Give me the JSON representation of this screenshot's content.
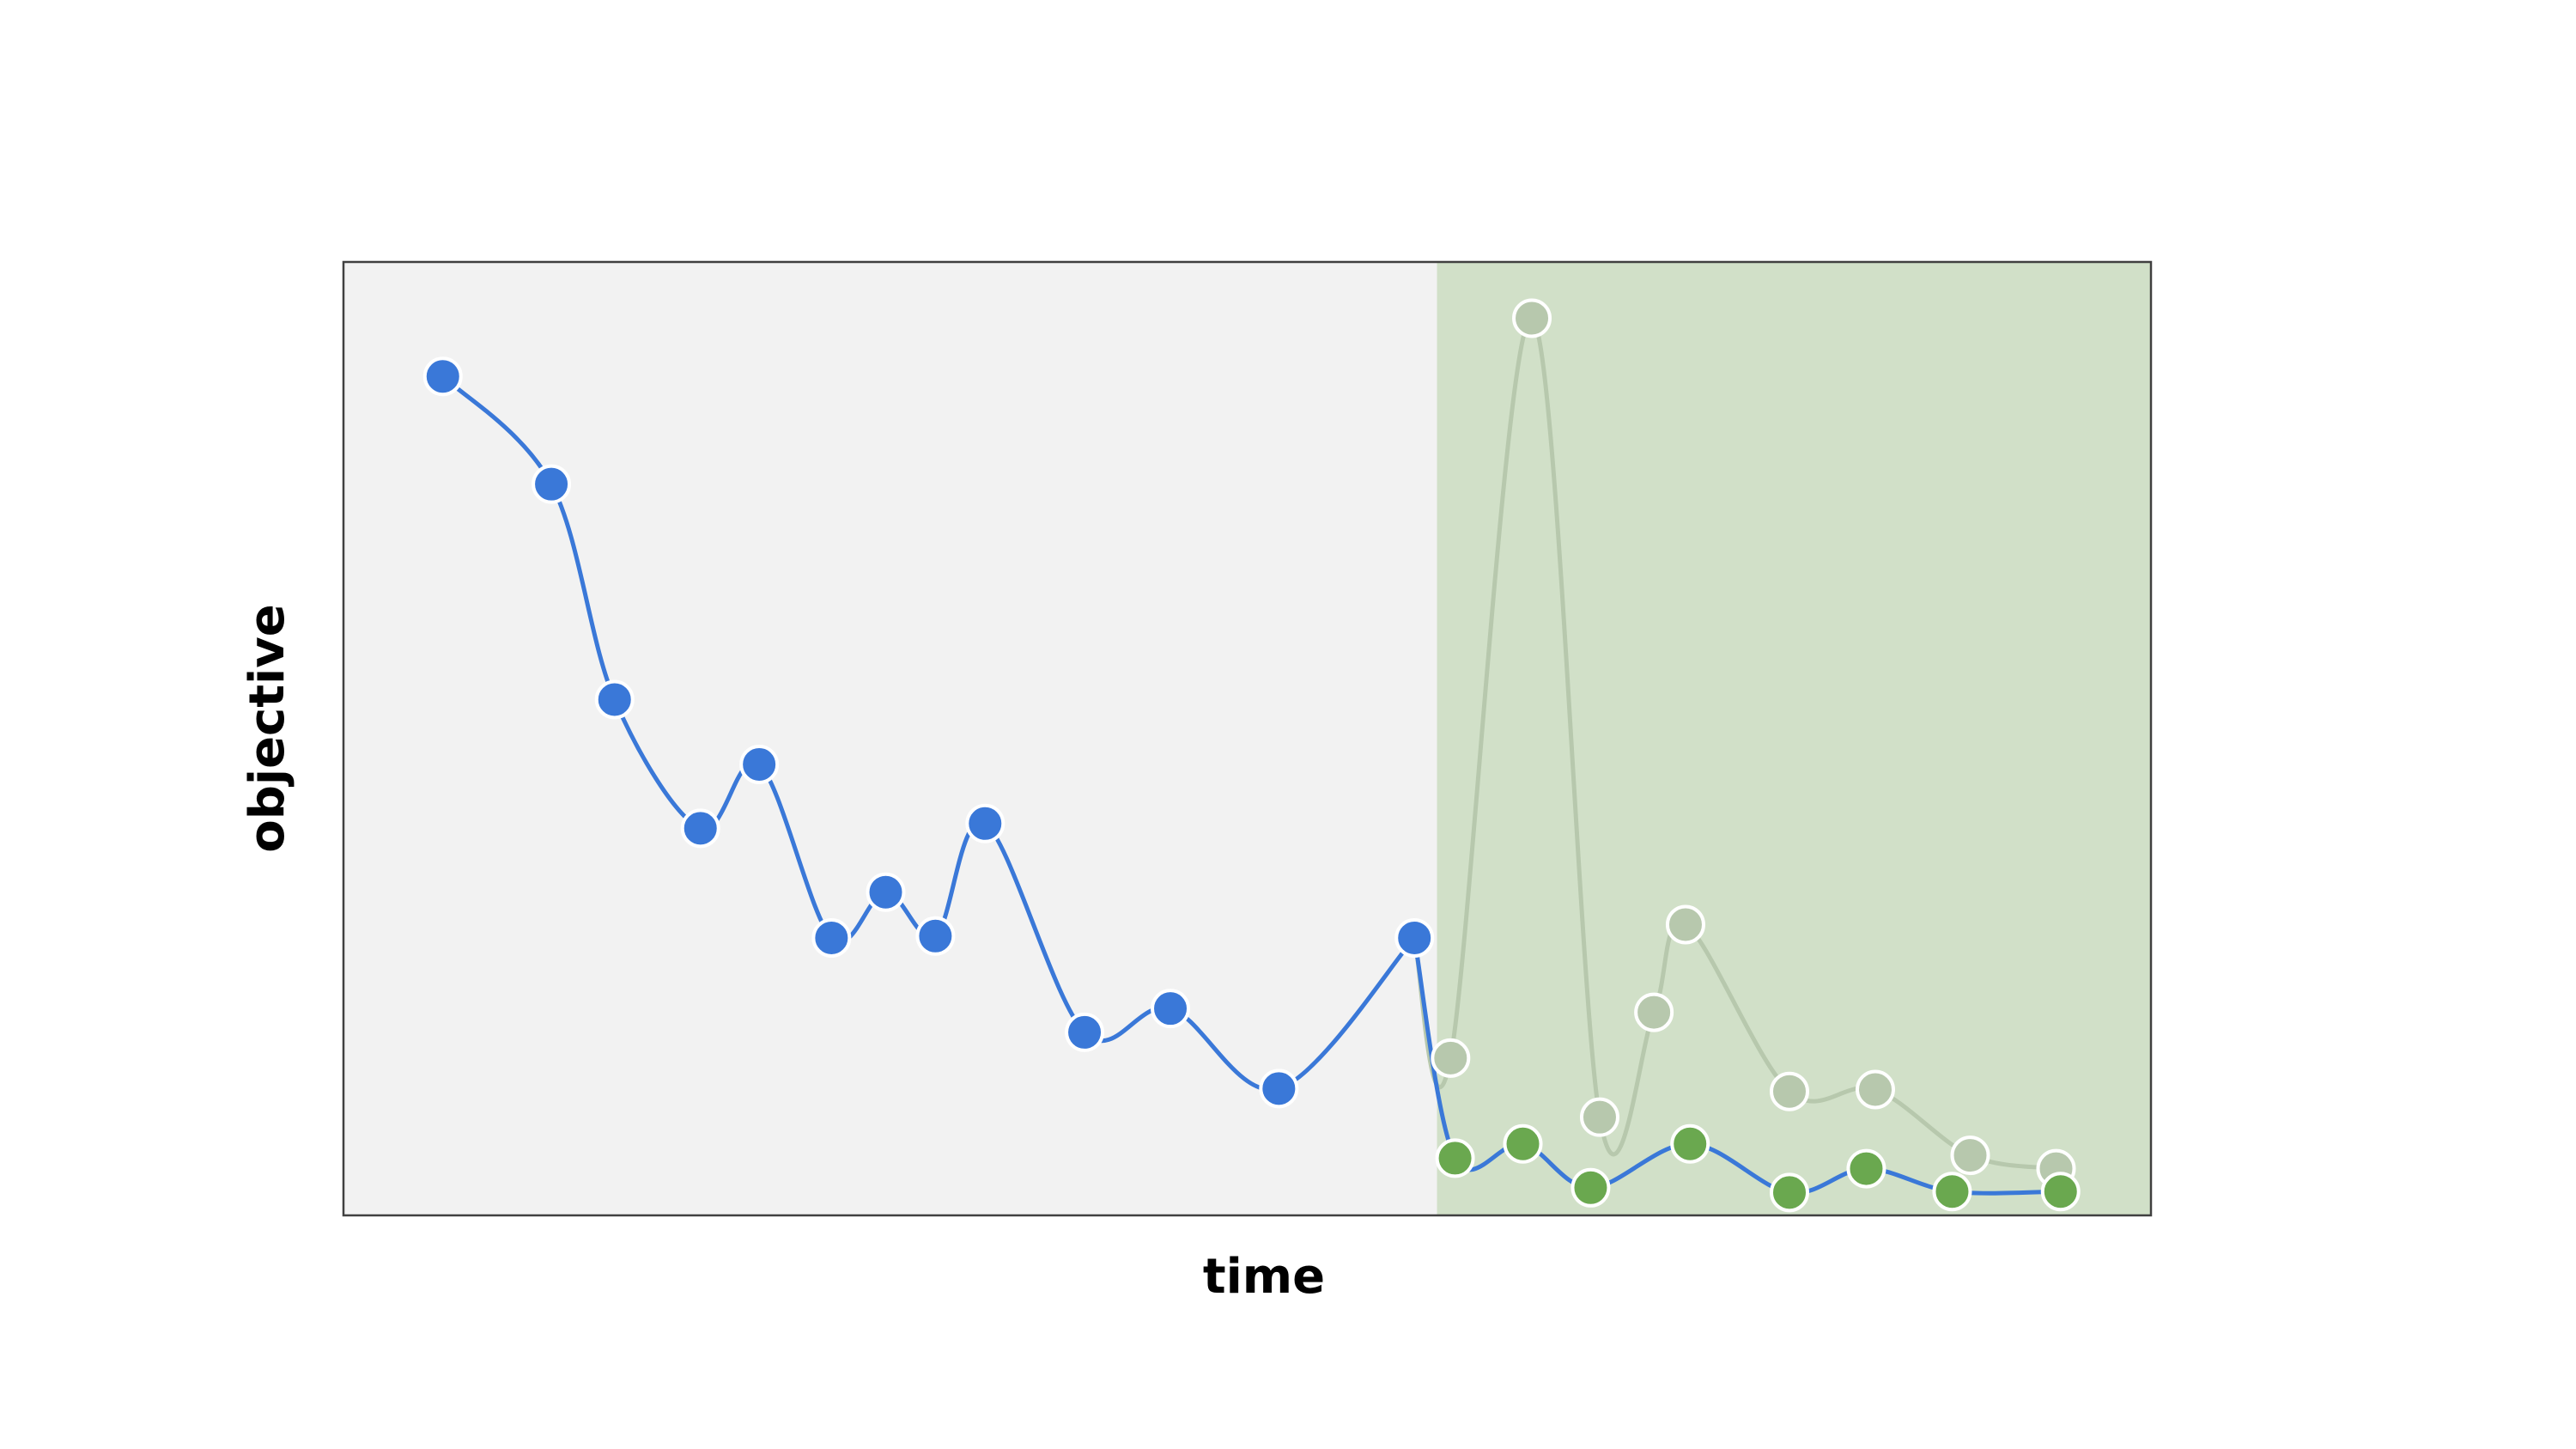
{
  "chart_data": {
    "type": "line",
    "xlabel": "time",
    "ylabel": "objective",
    "xlim": [
      0,
      20
    ],
    "ylim": [
      0,
      100
    ],
    "grid": false,
    "regions": [
      {
        "x_start": 0,
        "x_end": 12.1,
        "color": "#f2f2f2"
      },
      {
        "x_start": 12.1,
        "x_end": 20,
        "color": "#d1e0c8"
      }
    ],
    "series": [
      {
        "role": "history",
        "color": "#3a78d8",
        "points": [
          [
            1.1,
            88
          ],
          [
            2.3,
            76.7
          ],
          [
            3.0,
            54.1
          ],
          [
            3.95,
            40.6
          ],
          [
            4.6,
            47.3
          ],
          [
            5.4,
            29.1
          ],
          [
            6.0,
            33.9
          ],
          [
            6.55,
            29.3
          ],
          [
            7.1,
            41.1
          ],
          [
            8.2,
            19.2
          ],
          [
            9.15,
            21.7
          ],
          [
            10.35,
            13.3
          ],
          [
            11.85,
            29.1
          ]
        ]
      },
      {
        "role": "discarded",
        "color": "#b7c8ad",
        "points": [
          [
            11.85,
            29.1
          ],
          [
            12.25,
            16.5
          ],
          [
            13.15,
            94.1
          ],
          [
            13.9,
            10.3
          ],
          [
            14.5,
            21.3
          ],
          [
            14.85,
            30.5
          ],
          [
            16.0,
            13.0
          ],
          [
            16.95,
            13.2
          ],
          [
            18.0,
            6.3
          ],
          [
            18.95,
            4.9
          ]
        ]
      },
      {
        "role": "accepted",
        "color": "#3a78d8",
        "marker_color": "#6aa84f",
        "points": [
          [
            11.85,
            29.1
          ],
          [
            12.3,
            6.0
          ],
          [
            13.05,
            7.5
          ],
          [
            13.8,
            2.9
          ],
          [
            14.9,
            7.5
          ],
          [
            16.0,
            2.4
          ],
          [
            16.85,
            4.9
          ],
          [
            17.8,
            2.5
          ],
          [
            19.0,
            2.5
          ]
        ]
      }
    ]
  }
}
